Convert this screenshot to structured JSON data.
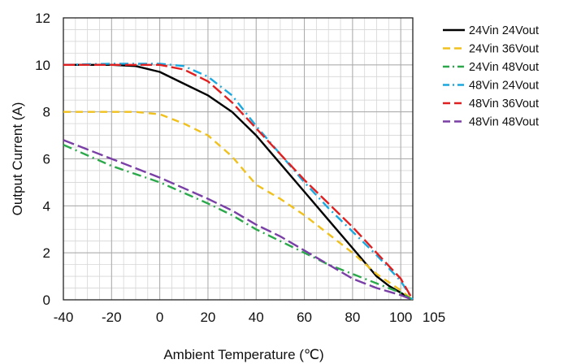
{
  "chart_data": {
    "type": "line",
    "title": "",
    "xlabel": "Ambient Temperature (℃)",
    "ylabel": "Output Current (A)",
    "xlim": [
      -40,
      105
    ],
    "ylim": [
      0,
      12
    ],
    "x_ticks": [
      -40,
      -20,
      0,
      20,
      40,
      60,
      80,
      100
    ],
    "x_tick_labels": [
      "-40",
      "-20",
      "0",
      "20",
      "40",
      "60",
      "80",
      "100"
    ],
    "x_end_label": "105",
    "y_ticks": [
      0,
      2,
      4,
      6,
      8,
      10,
      12
    ],
    "y_tick_labels": [
      "0",
      "2",
      "4",
      "6",
      "8",
      "10",
      "12"
    ],
    "grid": true,
    "legend_position": "right",
    "series": [
      {
        "name": "24Vin 24Vout",
        "color": "#000000",
        "dash": "solid",
        "x": [
          -40,
          -20,
          -10,
          0,
          10,
          20,
          30,
          40,
          50,
          60,
          70,
          80,
          90,
          95,
          100,
          105
        ],
        "y": [
          10.0,
          10.0,
          9.95,
          9.7,
          9.2,
          8.7,
          8.0,
          7.0,
          5.8,
          4.6,
          3.4,
          2.2,
          1.0,
          0.6,
          0.3,
          0.0
        ]
      },
      {
        "name": "24Vin 36Vout",
        "color": "#f0c01c",
        "dash": "dash",
        "x": [
          -40,
          -20,
          -10,
          0,
          10,
          20,
          30,
          35,
          40,
          50,
          60,
          70,
          80,
          90,
          100,
          105
        ],
        "y": [
          8.0,
          8.0,
          8.0,
          7.9,
          7.5,
          7.0,
          6.1,
          5.5,
          4.9,
          4.3,
          3.6,
          2.8,
          2.0,
          1.1,
          0.4,
          0.0
        ]
      },
      {
        "name": "24Vin 48Vout",
        "color": "#2aa84a",
        "dash": "dashdot",
        "x": [
          -40,
          -20,
          0,
          20,
          30,
          40,
          50,
          60,
          70,
          80,
          90,
          100,
          105
        ],
        "y": [
          6.6,
          5.7,
          5.0,
          4.1,
          3.6,
          3.0,
          2.5,
          2.0,
          1.5,
          1.1,
          0.7,
          0.3,
          0.0
        ]
      },
      {
        "name": "48Vin 24Vout",
        "color": "#19a9e0",
        "dash": "dashdot",
        "x": [
          -40,
          -20,
          -10,
          0,
          10,
          20,
          30,
          40,
          50,
          60,
          70,
          80,
          90,
          100,
          105
        ],
        "y": [
          10.0,
          10.05,
          10.05,
          10.05,
          9.95,
          9.5,
          8.7,
          7.4,
          6.2,
          5.0,
          3.9,
          2.9,
          1.9,
          0.8,
          0.0
        ]
      },
      {
        "name": "48Vin 36Vout",
        "color": "#e02020",
        "dash": "longdash",
        "x": [
          -40,
          -20,
          -10,
          0,
          10,
          20,
          30,
          40,
          50,
          60,
          70,
          80,
          90,
          100,
          105
        ],
        "y": [
          10.0,
          10.0,
          10.0,
          10.0,
          9.8,
          9.3,
          8.4,
          7.3,
          6.2,
          5.1,
          4.1,
          3.1,
          2.0,
          0.9,
          0.0
        ]
      },
      {
        "name": "48Vin 48Vout",
        "color": "#7a3fa6",
        "dash": "longdash",
        "x": [
          -40,
          -20,
          0,
          20,
          30,
          40,
          50,
          60,
          70,
          80,
          90,
          100,
          105
        ],
        "y": [
          6.8,
          6.0,
          5.2,
          4.3,
          3.8,
          3.2,
          2.7,
          2.1,
          1.5,
          0.9,
          0.5,
          0.2,
          0.0
        ]
      }
    ]
  }
}
